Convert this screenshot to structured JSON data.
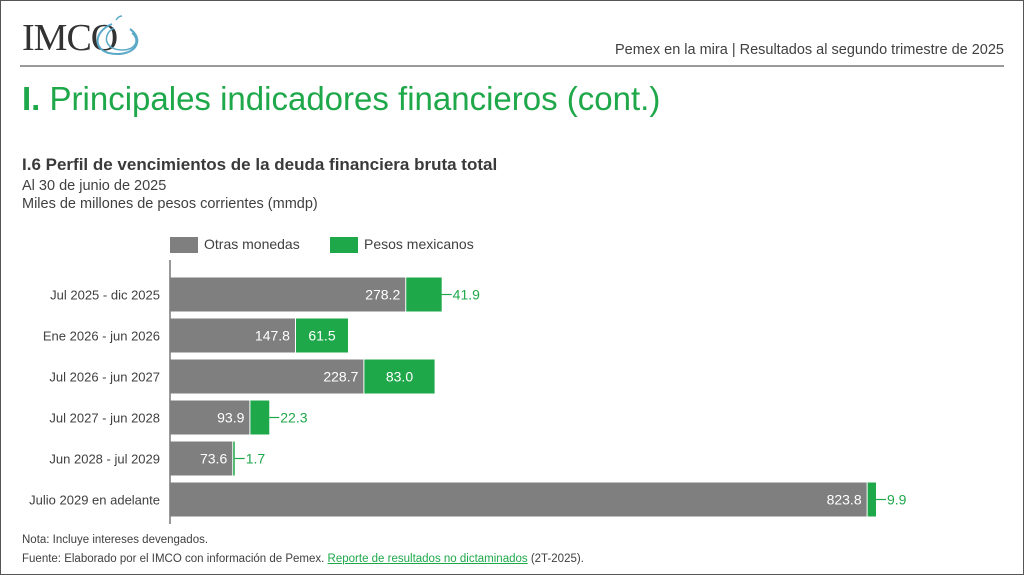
{
  "header": {
    "logo_text": "IMCO",
    "subtitle": "Pemex en la mira | Resultados al segundo trimestre de 2025"
  },
  "page": {
    "section_number": "I.",
    "section_title": "Principales indicadores financieros (cont.)"
  },
  "chart_header": {
    "title": "I.6 Perfil de vencimientos de la deuda financiera bruta total",
    "subtitle1": "Al 30 de junio de 2025",
    "subtitle2": "Miles de millones de pesos corrientes (mmdp)"
  },
  "colors": {
    "otras": "#7f7f7f",
    "pesos": "#1ea84a",
    "title_green": "#1ea84a"
  },
  "chart_data": {
    "type": "bar",
    "orientation": "horizontal",
    "stacked": true,
    "categories": [
      "Jul 2025 - dic 2025",
      "Ene 2026 - jun 2026",
      "Jul 2026 - jun 2027",
      "Jul 2027 - jun 2028",
      "Jun 2028 - jul 2029",
      "Julio 2029 en adelante"
    ],
    "series": [
      {
        "name": "Otras monedas",
        "values": [
          278.2,
          147.8,
          228.7,
          93.9,
          73.6,
          823.8
        ],
        "labels": [
          "278.2",
          "147.8",
          "228.7",
          "93.9",
          "73.6",
          "823.8"
        ]
      },
      {
        "name": "Pesos mexicanos",
        "values": [
          41.9,
          61.5,
          83.0,
          22.3,
          1.7,
          9.9
        ],
        "labels": [
          "41.9",
          "61.5",
          "83.0",
          "22.3",
          "1.7",
          "9.9"
        ]
      }
    ],
    "xlim": [
      0,
      833.7
    ],
    "legend": "top-left",
    "grid": false
  },
  "footer": {
    "note": "Nota: Incluye intereses devengados.",
    "source_prefix": "Fuente: Elaborado por el IMCO con información de Pemex. ",
    "source_link": "Reporte de resultados no dictaminados",
    "source_suffix": " (2T-2025)."
  }
}
